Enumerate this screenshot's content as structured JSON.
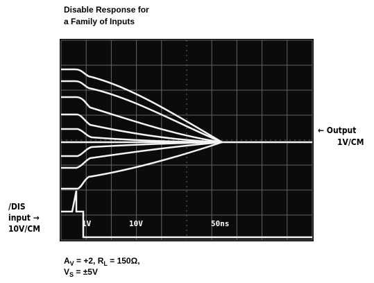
{
  "title": {
    "lines": [
      "Disable Response for",
      "a Family of Inputs"
    ]
  },
  "output_label": {
    "lines": [
      "← Output",
      "1V/CM"
    ]
  },
  "input_label": {
    "lines": [
      "/DIS",
      "input →",
      "10V/CM"
    ]
  },
  "screen_labels": [
    "1V",
    "10V",
    "50ns"
  ],
  "caption": {
    "line1": [
      "A",
      "V",
      " = +2, R",
      "L",
      " = 150Ω,"
    ],
    "line2": [
      "V",
      "S",
      " = ±5V"
    ]
  }
}
